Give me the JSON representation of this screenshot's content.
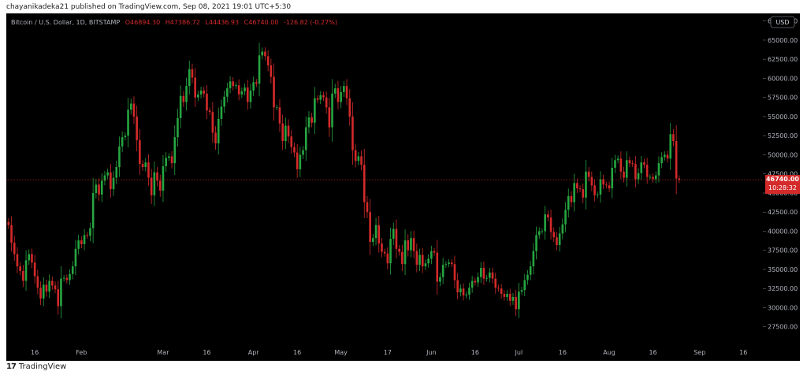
{
  "header": {
    "publisher_line": "chayanikadeka21 published on TradingView.com, Sep 08, 2021 19:01 UTC+5:30"
  },
  "footer": {
    "brand": "TradingView",
    "logo_icon": "tradingview-logo-icon"
  },
  "legend": {
    "symbol": "Bitcoin / U.S. Dollar, 1D, BITSTAMP",
    "o_label": "O",
    "o_value": "46894.30",
    "h_label": "H",
    "h_value": "47386.72",
    "l_label": "L",
    "l_value": "44436.93",
    "c_label": "C",
    "c_value": "46740.00",
    "change": "-126.82 (-0.27%)"
  },
  "price_badge": {
    "value": "46740.00",
    "countdown": "10:28:32"
  },
  "currency": "USD",
  "colors": {
    "up": "#26a641",
    "down": "#d42a2a",
    "background": "#000000",
    "axis_text": "#b2b5be"
  },
  "chart_data": {
    "type": "candlestick",
    "title": "",
    "y_ticks": [
      27500,
      30000,
      32500,
      35000,
      37500,
      40000,
      42500,
      45000,
      47500,
      50000,
      52500,
      55000,
      57500,
      60000,
      62500,
      65000,
      67500
    ],
    "y_tick_labels": [
      "27500.00",
      "30000.00",
      "32500.00",
      "35000.00",
      "37500.00",
      "40000.00",
      "42500.00",
      "45000.00",
      "47500.00",
      "50000.00",
      "52500.00",
      "55000.00",
      "57500.00",
      "60000.00",
      "62500.00",
      "65000.00",
      "67500.00"
    ],
    "ylim": [
      25000,
      68500
    ],
    "x_labels": [
      "16",
      "Feb",
      "Mar",
      "16",
      "Apr",
      "16",
      "May",
      "17",
      "Jun",
      "16",
      "Jul",
      "16",
      "Aug",
      "16",
      "Sep",
      "16"
    ],
    "last_price": 46740,
    "closes": [
      40800,
      38500,
      37000,
      35400,
      34800,
      33500,
      36200,
      37000,
      35900,
      34100,
      32600,
      31200,
      33000,
      32100,
      33500,
      32900,
      32400,
      30200,
      33800,
      33900,
      33600,
      34400,
      35400,
      37700,
      38800,
      38300,
      39500,
      39400,
      40400,
      45000,
      46100,
      44800,
      46600,
      47300,
      47700,
      45500,
      47000,
      48400,
      51100,
      52300,
      52500,
      55900,
      56700,
      55000,
      51900,
      48800,
      48400,
      49000,
      47000,
      44700,
      47700,
      46600,
      45300,
      48500,
      49600,
      49800,
      48900,
      52300,
      54800,
      57700,
      56900,
      59000,
      61200,
      60100,
      57500,
      57900,
      58400,
      58000,
      55800,
      55600,
      52900,
      51500,
      54700,
      56300,
      57600,
      58700,
      59600,
      59000,
      59100,
      57900,
      58300,
      58800,
      56900,
      58400,
      59500,
      59300,
      63000,
      63500,
      62900,
      61700,
      60200,
      56200,
      56200,
      54100,
      51800,
      53800,
      52400,
      51000,
      50300,
      48100,
      50000,
      50600,
      53600,
      54900,
      54200,
      57400,
      57200,
      57800,
      57500,
      56200,
      53600,
      58000,
      58700,
      56900,
      58200,
      59000,
      57400,
      55000,
      50600,
      49200,
      49800,
      48700,
      43800,
      42500,
      38600,
      39100,
      40800,
      38400,
      37300,
      37100,
      35800,
      39000,
      40300,
      37700,
      37300,
      35700,
      38800,
      37500,
      39100,
      37400,
      35600,
      36900,
      35400,
      35800,
      36400,
      37400,
      37200,
      33400,
      34000,
      35600,
      35700,
      35900,
      35700,
      33600,
      32000,
      32500,
      31600,
      31700,
      32600,
      33500,
      33300,
      34000,
      35200,
      33800,
      33900,
      34600,
      33800,
      32600,
      32500,
      31800,
      31400,
      31800,
      30900,
      31400,
      29800,
      32100,
      32300,
      33600,
      34300,
      35400,
      37400,
      39500,
      40000,
      40000,
      42200,
      41800,
      39900,
      39200,
      38200,
      39700,
      40900,
      42800,
      44600,
      43800,
      46300,
      45600,
      45500,
      44400,
      47800,
      47100,
      46000,
      44700,
      44800,
      46800,
      46100,
      46000,
      45600,
      48300,
      49300,
      49500,
      47800,
      47000,
      49300,
      48900,
      48800,
      46800,
      47600,
      49000,
      48700,
      47100,
      47100,
      46800,
      47300,
      48900,
      49700,
      50000,
      49500,
      52700,
      51800,
      46900,
      46740
    ]
  }
}
